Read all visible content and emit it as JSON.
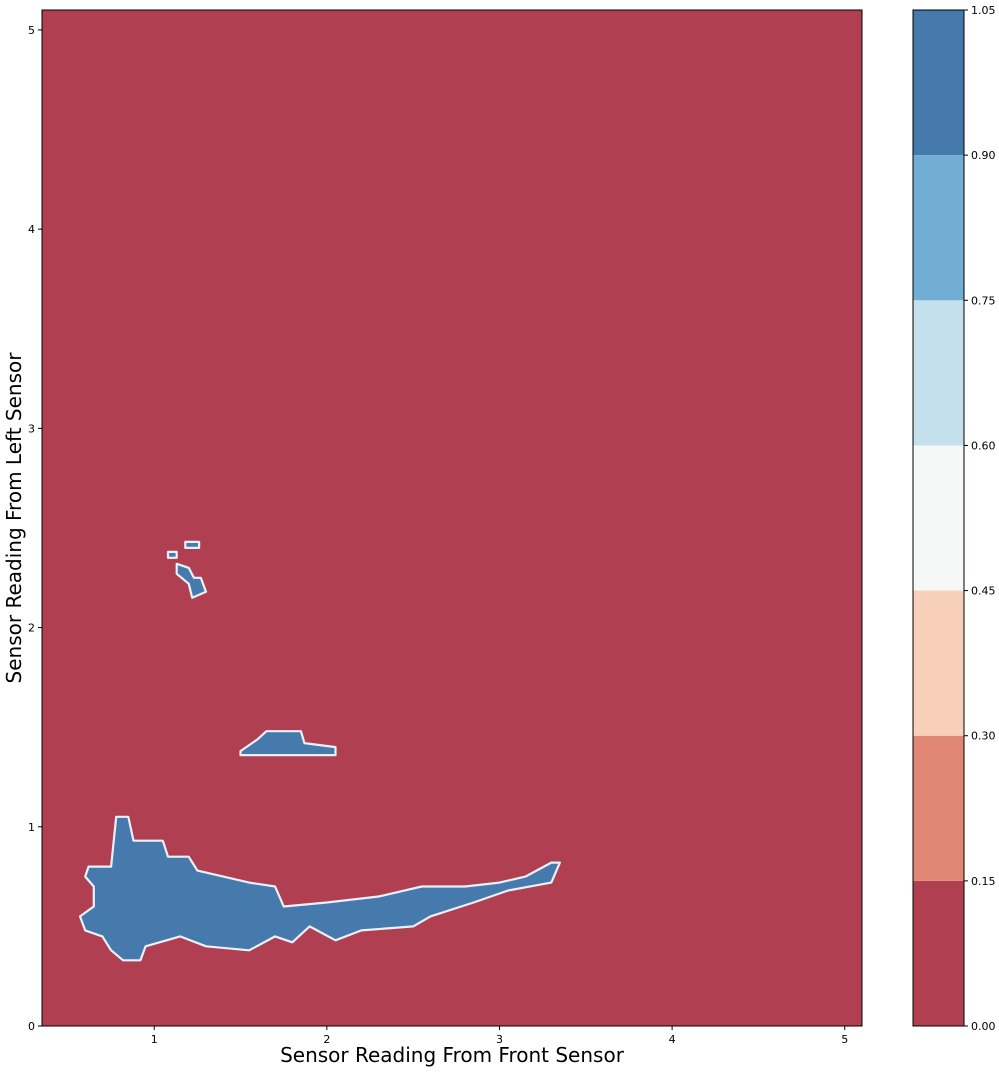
{
  "chart_data": {
    "type": "filled-contour",
    "title": "",
    "xlabel": "Sensor Reading From Front Sensor",
    "ylabel": "Sensor Reading From Left Sensor",
    "xlim": [
      0.35,
      5.1
    ],
    "ylim": [
      0,
      5.1
    ],
    "x_ticks": [
      1,
      2,
      3,
      4,
      5
    ],
    "y_ticks": [
      0,
      1,
      2,
      3,
      4,
      5
    ],
    "grid": false,
    "colorbar": {
      "levels": [
        0.0,
        0.15,
        0.3,
        0.45,
        0.6,
        0.75,
        0.9,
        1.05
      ],
      "tick_labels": [
        "0.00",
        "0.15",
        "0.30",
        "0.45",
        "0.60",
        "0.75",
        "0.90",
        "1.05"
      ],
      "colors": [
        "#b03f52",
        "#e08875",
        "#f8cfb8",
        "#f6f7f7",
        "#c4e0ed",
        "#72aed4",
        "#4679ac"
      ]
    },
    "background_class": 0.0,
    "regions": [
      {
        "class": 1.0,
        "description_points": [
          [
            0.62,
            0.8
          ],
          [
            0.75,
            0.8
          ],
          [
            0.78,
            1.05
          ],
          [
            0.85,
            1.05
          ],
          [
            0.88,
            0.93
          ],
          [
            1.05,
            0.93
          ],
          [
            1.08,
            0.85
          ],
          [
            1.2,
            0.85
          ],
          [
            1.25,
            0.78
          ],
          [
            1.55,
            0.72
          ],
          [
            1.7,
            0.7
          ],
          [
            1.75,
            0.6
          ],
          [
            2.0,
            0.62
          ],
          [
            2.3,
            0.65
          ],
          [
            2.55,
            0.7
          ],
          [
            2.8,
            0.7
          ],
          [
            3.0,
            0.72
          ],
          [
            3.15,
            0.75
          ],
          [
            3.3,
            0.82
          ],
          [
            3.35,
            0.82
          ],
          [
            3.3,
            0.72
          ],
          [
            3.05,
            0.68
          ],
          [
            2.85,
            0.62
          ],
          [
            2.6,
            0.55
          ],
          [
            2.5,
            0.5
          ],
          [
            2.2,
            0.48
          ],
          [
            2.05,
            0.43
          ],
          [
            1.9,
            0.5
          ],
          [
            1.8,
            0.42
          ],
          [
            1.7,
            0.45
          ],
          [
            1.55,
            0.38
          ],
          [
            1.3,
            0.4
          ],
          [
            1.15,
            0.45
          ],
          [
            0.95,
            0.4
          ],
          [
            0.92,
            0.33
          ],
          [
            0.82,
            0.33
          ],
          [
            0.75,
            0.38
          ],
          [
            0.7,
            0.45
          ],
          [
            0.6,
            0.48
          ],
          [
            0.57,
            0.55
          ],
          [
            0.65,
            0.6
          ],
          [
            0.65,
            0.7
          ],
          [
            0.6,
            0.75
          ]
        ]
      },
      {
        "class": 1.0,
        "description_points": [
          [
            1.5,
            1.38
          ],
          [
            1.6,
            1.44
          ],
          [
            1.65,
            1.48
          ],
          [
            1.85,
            1.48
          ],
          [
            1.87,
            1.42
          ],
          [
            2.05,
            1.4
          ],
          [
            2.05,
            1.36
          ],
          [
            1.5,
            1.36
          ]
        ]
      },
      {
        "class": 1.0,
        "description_points": [
          [
            1.13,
            2.32
          ],
          [
            1.2,
            2.3
          ],
          [
            1.23,
            2.25
          ],
          [
            1.27,
            2.25
          ],
          [
            1.3,
            2.18
          ],
          [
            1.22,
            2.15
          ],
          [
            1.2,
            2.22
          ],
          [
            1.13,
            2.27
          ]
        ]
      },
      {
        "class": 1.0,
        "description_points": [
          [
            1.18,
            2.4
          ],
          [
            1.26,
            2.4
          ],
          [
            1.26,
            2.43
          ],
          [
            1.18,
            2.43
          ]
        ]
      },
      {
        "class": 1.0,
        "description_points": [
          [
            1.08,
            2.35
          ],
          [
            1.13,
            2.35
          ],
          [
            1.13,
            2.38
          ],
          [
            1.08,
            2.38
          ]
        ]
      }
    ]
  }
}
